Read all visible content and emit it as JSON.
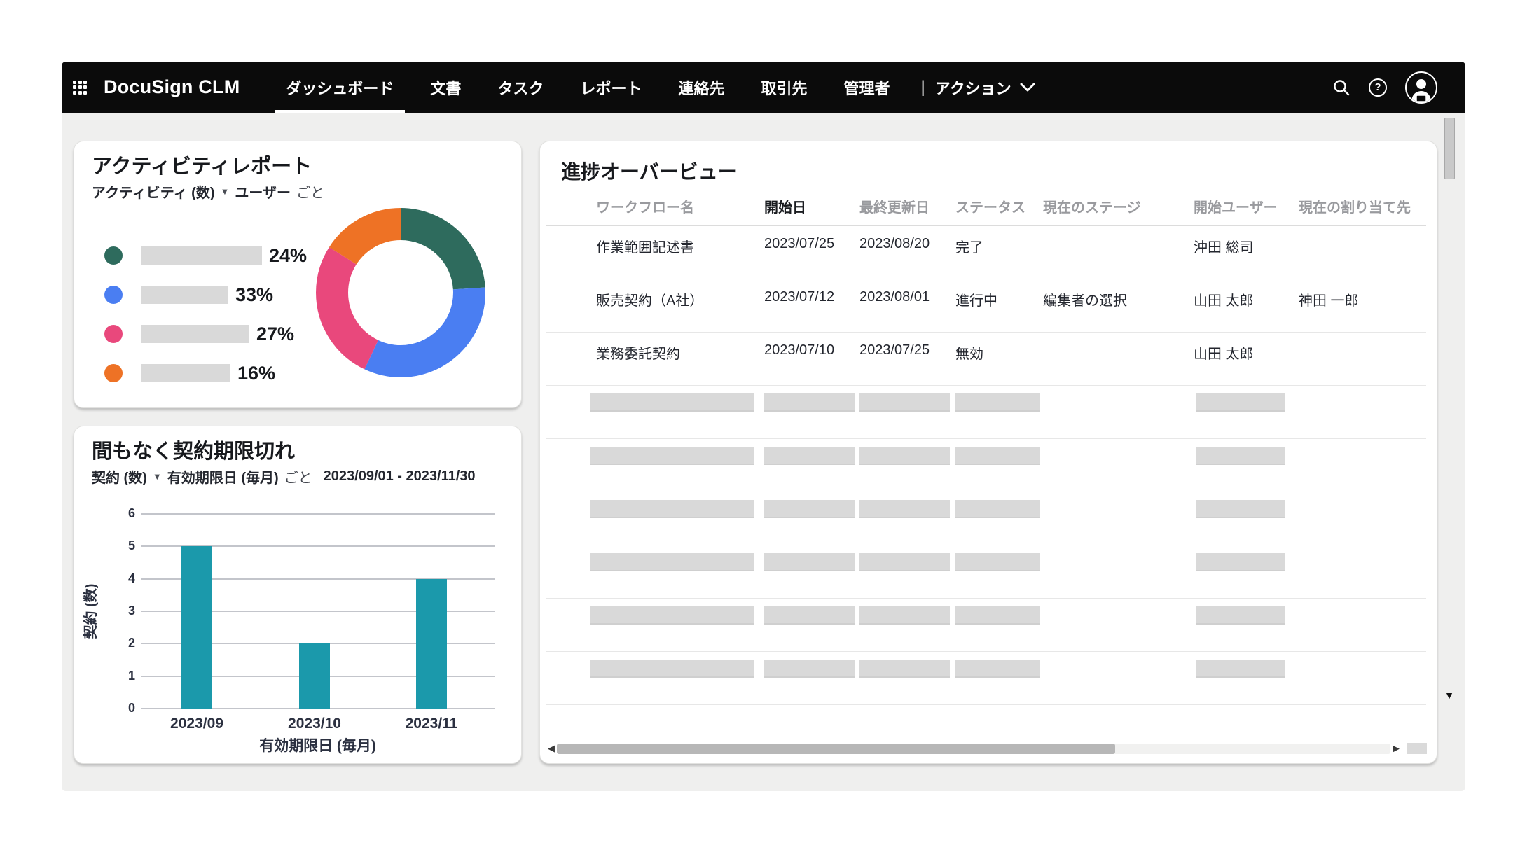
{
  "app": {
    "brand": "DocuSign CLM"
  },
  "nav": {
    "items": [
      {
        "label": "ダッシュボード",
        "active": true
      },
      {
        "label": "文書",
        "active": false
      },
      {
        "label": "タスク",
        "active": false
      },
      {
        "label": "レポート",
        "active": false
      },
      {
        "label": "連絡先",
        "active": false
      },
      {
        "label": "取引先",
        "active": false
      },
      {
        "label": "管理者",
        "active": false
      }
    ],
    "divider": "|",
    "action_menu": {
      "label": "アクション"
    },
    "help_glyph": "?"
  },
  "activity_card": {
    "title": "アクティビティレポート",
    "metric_label": "アクティビティ (数)",
    "metric_caret": "▼",
    "by_label": "ユーザー",
    "by_suffix": "ごと",
    "legend_placeholder_widths": [
      173,
      125,
      155,
      128
    ]
  },
  "expiry_card": {
    "title": "間もなく契約期限切れ",
    "metric_label": "契約 (数)",
    "metric_caret": "▼",
    "by_label": "有効期限日 (毎月)",
    "by_suffix": "ごと",
    "date_range": "2023/09/01 - 2023/11/30"
  },
  "progress_card": {
    "title": "進捗オーバービュー",
    "columns": [
      {
        "label": "ワークフロー名",
        "emphasis": false
      },
      {
        "label": "開始日",
        "emphasis": true
      },
      {
        "label": "最終更新日",
        "emphasis": false
      },
      {
        "label": "ステータス",
        "emphasis": false
      },
      {
        "label": "現在のステージ",
        "emphasis": false
      },
      {
        "label": "開始ユーザー",
        "emphasis": false
      },
      {
        "label": "現在の割り当て先",
        "emphasis": false
      }
    ],
    "rows": [
      {
        "workflow": "作業範囲記述書",
        "start_date": "2023/07/25",
        "last_updated": "2023/08/20",
        "status": "完了",
        "stage": "",
        "start_user": "沖田 総司",
        "assignee": ""
      },
      {
        "workflow": "販売契約（A社）",
        "start_date": "2023/07/12",
        "last_updated": "2023/08/01",
        "status": "進行中",
        "stage": "編集者の選択",
        "start_user": "山田 太郎",
        "assignee": "神田 一郎"
      },
      {
        "workflow": "業務委託契約",
        "start_date": "2023/07/10",
        "last_updated": "2023/07/25",
        "status": "無効",
        "stage": "",
        "start_user": "山田 太郎",
        "assignee": ""
      }
    ],
    "placeholder_row_count": 6
  },
  "chart_data": [
    {
      "type": "pie",
      "variant": "donut",
      "title": "アクティビティレポート",
      "legend_position": "left",
      "slices": [
        {
          "label": "24%",
          "value": 24,
          "color": "#2E6B5D"
        },
        {
          "label": "33%",
          "value": 33,
          "color": "#4A7EF2"
        },
        {
          "label": "27%",
          "value": 27,
          "color": "#E9487C"
        },
        {
          "label": "16%",
          "value": 16,
          "color": "#EE7225"
        }
      ]
    },
    {
      "type": "bar",
      "title": "間もなく契約期限切れ",
      "categories": [
        "2023/09",
        "2023/10",
        "2023/11"
      ],
      "values": [
        5,
        2,
        4
      ],
      "xlabel": "有効期限日 (毎月)",
      "ylabel": "契約 (数)",
      "ylim": [
        0,
        6
      ],
      "yticks": [
        0,
        1,
        2,
        3,
        4,
        5,
        6
      ],
      "bar_color": "#1B99AB",
      "grid": true,
      "date_range": "2023/09/01 - 2023/11/30"
    }
  ],
  "colors": {
    "nav_bg": "#0B0B0B",
    "page_bg": "#EFEFEE",
    "card_bg": "#FFFFFF",
    "placeholder": "#D9D9D9",
    "header_text": "#999A9E",
    "body_text": "#23262E"
  }
}
